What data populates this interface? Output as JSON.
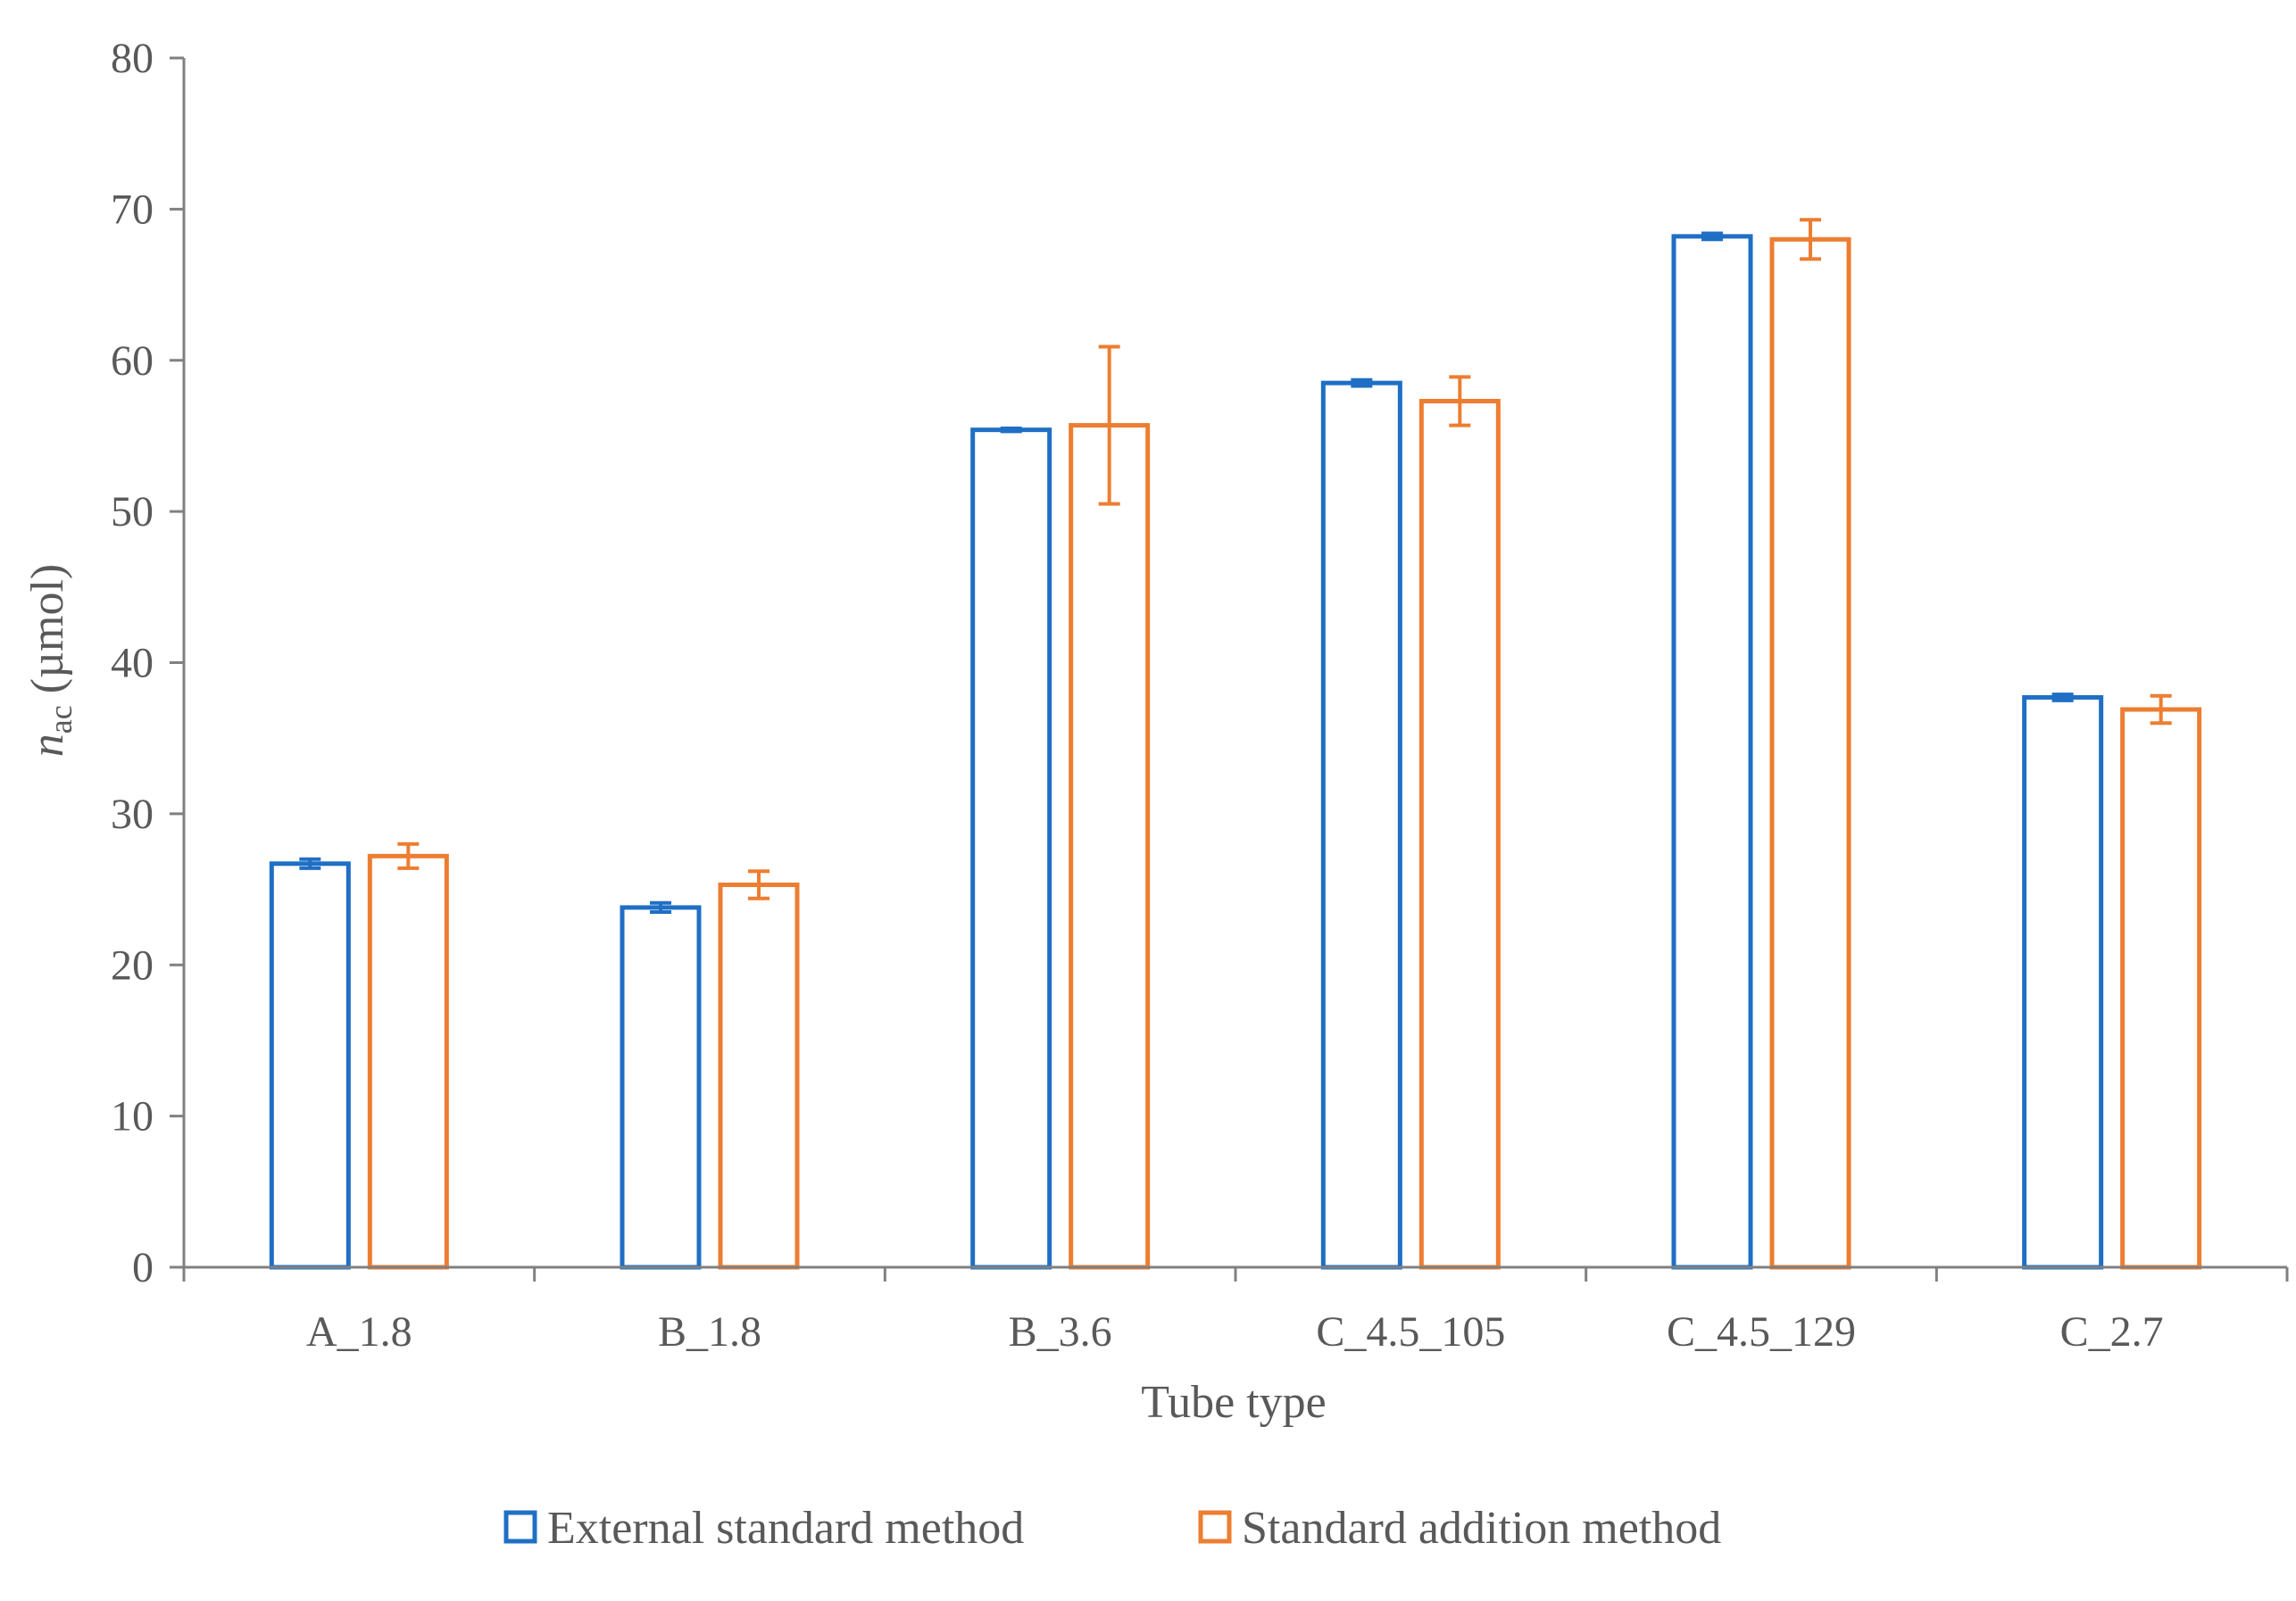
{
  "chart_data": {
    "type": "bar",
    "categories": [
      "A_1.8",
      "B_1.8",
      "B_3.6",
      "C_4.5_105",
      "C_4.5_129",
      "C_2.7"
    ],
    "series": [
      {
        "name": "External standard method",
        "color": "#1f6fc5",
        "values": [
          26.7,
          23.8,
          55.4,
          58.5,
          68.2,
          37.7
        ],
        "errors": [
          0.3,
          0.3,
          0.1,
          0.2,
          0.2,
          0.2
        ]
      },
      {
        "name": "Standard addition method",
        "color": "#ed7d31",
        "values": [
          27.2,
          25.3,
          55.7,
          57.3,
          68.0,
          36.9
        ],
        "errors": [
          0.8,
          0.9,
          5.2,
          1.6,
          1.3,
          0.9
        ]
      }
    ],
    "xlabel": "Tube type",
    "ylabel_main": "n",
    "ylabel_sub": "ac",
    "ylabel_unit": " (µmol)",
    "ylim": [
      0,
      80
    ],
    "yticks": [
      0,
      10,
      20,
      30,
      40,
      50,
      60,
      70,
      80
    ],
    "grid": false,
    "legend_position": "bottom"
  },
  "colors": {
    "axis": "#808080",
    "text": "#595959"
  }
}
